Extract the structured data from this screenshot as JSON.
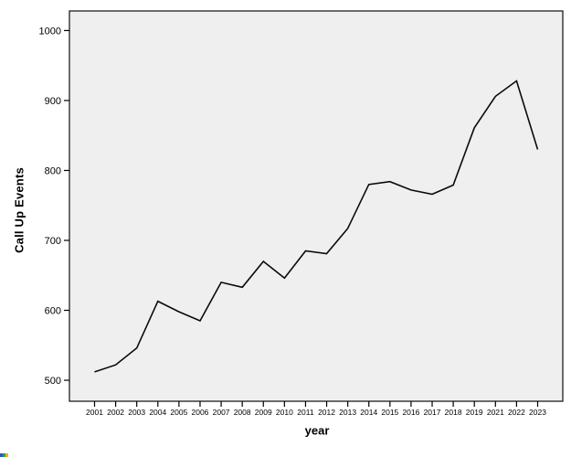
{
  "chart_data": {
    "type": "line",
    "title": "",
    "xlabel": "year",
    "ylabel": "Call Up Events",
    "categories": [
      "2001",
      "2002",
      "2003",
      "2004",
      "2005",
      "2006",
      "2007",
      "2008",
      "2009",
      "2010",
      "2011",
      "2012",
      "2013",
      "2014",
      "2015",
      "2016",
      "2017",
      "2018",
      "2019",
      "2021",
      "2022",
      "2023"
    ],
    "values": [
      512,
      522,
      546,
      613,
      598,
      585,
      640,
      633,
      670,
      646,
      685,
      681,
      717,
      780,
      784,
      772,
      766,
      779,
      861,
      906,
      928,
      830
    ],
    "y_ticks": [
      500,
      600,
      700,
      800,
      900,
      1000
    ],
    "ylim": [
      470,
      1028
    ],
    "grid": false,
    "legend": "none"
  },
  "colors": {
    "canvas_background": "#ffffff",
    "plot_background": "#efefef",
    "plot_border": "#1f1f1f",
    "line": "#0a0a0a",
    "tick": "#000000",
    "text": "#000000",
    "artifact_pixels": [
      "#2b59c3",
      "#3a9e3f",
      "#e3b71e"
    ]
  }
}
